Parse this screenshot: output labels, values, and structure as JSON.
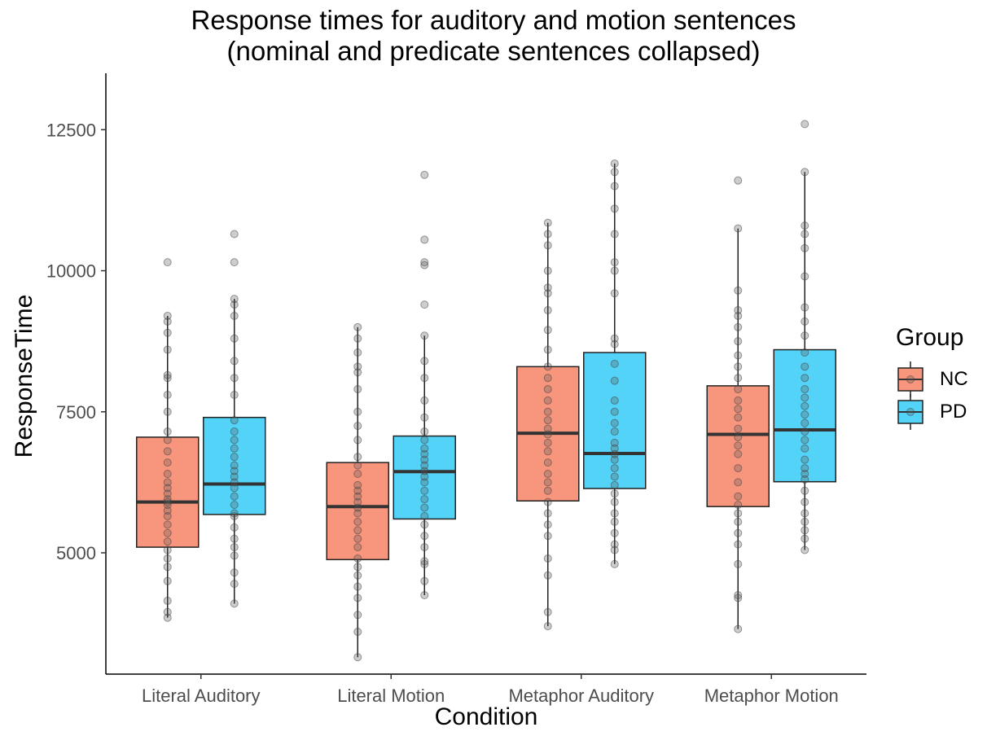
{
  "chart_data": {
    "type": "box",
    "title": "Response times for auditory and motion sentences",
    "subtitle": "(nominal and predicate sentences collapsed)",
    "xlabel": "Condition",
    "ylabel": "ResponseTime",
    "categories": [
      "Literal Auditory",
      "Literal Motion",
      "Metaphor Auditory",
      "Metaphor Motion"
    ],
    "ylim": [
      2850,
      13500
    ],
    "yticks": [
      5000,
      7500,
      10000,
      12500
    ],
    "yticklabels": [
      "5000",
      "7500",
      "10000",
      "12500"
    ],
    "grid": false,
    "legend": {
      "title": "Group",
      "position": "right"
    },
    "series": [
      {
        "name": "NC",
        "color": "#F8967D",
        "boxes": [
          {
            "min": 3850,
            "q1": 5100,
            "median": 5900,
            "q3": 7050,
            "max": 9200,
            "points": [
              3850,
              3950,
              4150,
              4500,
              4750,
              4900,
              5050,
              5200,
              5350,
              5500,
              5650,
              5750,
              5850,
              5900,
              5950,
              6050,
              6150,
              6250,
              6400,
              6600,
              6800,
              7000,
              7150,
              7500,
              7800,
              8100,
              8150,
              8600,
              8900,
              9100,
              9200,
              10150
            ]
          },
          {
            "min": 3150,
            "q1": 4880,
            "median": 5820,
            "q3": 6600,
            "max": 9000,
            "points": [
              3150,
              3600,
              3900,
              4200,
              4400,
              4600,
              4750,
              4900,
              5100,
              5250,
              5400,
              5550,
              5700,
              5800,
              5900,
              6000,
              6100,
              6200,
              6400,
              6550,
              6700,
              7000,
              7250,
              7500,
              7900,
              8200,
              8300,
              8550,
              8800,
              9000
            ]
          },
          {
            "min": 3700,
            "q1": 5920,
            "median": 7120,
            "q3": 8300,
            "max": 10850,
            "points": [
              3700,
              3950,
              4600,
              4900,
              5300,
              5500,
              5700,
              5900,
              6100,
              6250,
              6400,
              6600,
              6800,
              6950,
              7100,
              7200,
              7350,
              7500,
              7700,
              7900,
              8100,
              8300,
              8600,
              8950,
              9300,
              9600,
              9700,
              10000,
              10450,
              10650,
              10850
            ]
          },
          {
            "min": 3650,
            "q1": 5820,
            "median": 7100,
            "q3": 7960,
            "max": 10750,
            "points": [
              3650,
              4200,
              4250,
              4800,
              5150,
              5350,
              5550,
              5700,
              5850,
              6000,
              6250,
              6500,
              6750,
              6900,
              7050,
              7200,
              7400,
              7550,
              7700,
              7900,
              8100,
              8300,
              8500,
              8750,
              9000,
              9200,
              9300,
              9650,
              10750,
              11600
            ]
          }
        ]
      },
      {
        "name": "PD",
        "color": "#52D3F7",
        "boxes": [
          {
            "min": 4100,
            "q1": 5680,
            "median": 6220,
            "q3": 7400,
            "max": 9500,
            "points": [
              4100,
              4450,
              4650,
              4950,
              5100,
              5250,
              5450,
              5650,
              5700,
              5850,
              6000,
              6150,
              6250,
              6350,
              6450,
              6550,
              6700,
              6850,
              7000,
              7150,
              7350,
              7800,
              8100,
              8400,
              8800,
              9200,
              9400,
              9500,
              10150,
              10650
            ]
          },
          {
            "min": 4250,
            "q1": 5600,
            "median": 6440,
            "q3": 7070,
            "max": 8850,
            "points": [
              4250,
              4500,
              4800,
              4850,
              5100,
              5300,
              5500,
              5650,
              5800,
              5950,
              6100,
              6250,
              6350,
              6450,
              6550,
              6650,
              6750,
              6850,
              7000,
              7150,
              7400,
              7700,
              8100,
              8400,
              8850,
              9400,
              10100,
              10150,
              10550,
              11700
            ]
          },
          {
            "min": 4800,
            "q1": 6140,
            "median": 6760,
            "q3": 8550,
            "max": 11900,
            "points": [
              4800,
              5050,
              5150,
              5350,
              5550,
              5700,
              5900,
              6050,
              6200,
              6350,
              6500,
              6650,
              6750,
              6850,
              6950,
              7150,
              7300,
              7500,
              7700,
              8050,
              8350,
              8700,
              8800,
              9600,
              10000,
              10150,
              10650,
              11100,
              11500,
              11750,
              11900
            ]
          },
          {
            "min": 5050,
            "q1": 6260,
            "median": 7180,
            "q3": 8600,
            "max": 11750,
            "points": [
              5050,
              5250,
              5400,
              5550,
              5700,
              5900,
              6100,
              6300,
              6400,
              6500,
              6650,
              6850,
              7000,
              7150,
              7300,
              7450,
              7600,
              7750,
              7900,
              8100,
              8300,
              8550,
              8850,
              9100,
              9350,
              9900,
              10400,
              10650,
              10800,
              11750,
              12600
            ]
          }
        ]
      }
    ]
  }
}
